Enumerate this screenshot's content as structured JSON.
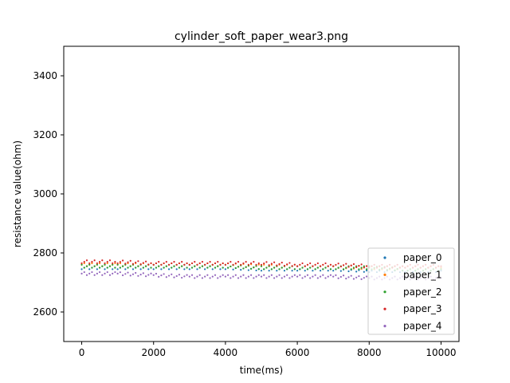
{
  "chart_data": {
    "type": "scatter",
    "title": "cylinder_soft_paper_wear3.png",
    "xlabel": "time(ms)",
    "ylabel": "resistance value(ohm)",
    "xlim": [
      -500,
      10500
    ],
    "ylim": [
      2500,
      3500
    ],
    "xticks": [
      0,
      2000,
      4000,
      6000,
      8000,
      10000
    ],
    "xtick_labels": [
      "0",
      "2000",
      "4000",
      "6000",
      "8000",
      "10000"
    ],
    "yticks": [
      2600,
      2800,
      3000,
      3200,
      3400
    ],
    "ytick_labels": [
      "2600",
      "2800",
      "3000",
      "3200",
      "3400"
    ],
    "grid": false,
    "legend_position": "bottom-right",
    "series": [
      {
        "name": "paper_0",
        "color": "#1f77b4",
        "x": [
          0,
          1000,
          2000,
          3000,
          4000,
          5000,
          6000,
          7000,
          8000,
          9000,
          10000
        ],
        "y": [
          2750,
          2750,
          2750,
          2750,
          2750,
          2745,
          2745,
          2745,
          2740,
          2740,
          2740
        ]
      },
      {
        "name": "paper_1",
        "color": "#ff7f0e",
        "x": [
          0,
          1000,
          2000,
          3000,
          4000,
          5000,
          6000,
          7000,
          8000,
          9000,
          10000
        ],
        "y": [
          2760,
          2760,
          2760,
          2760,
          2760,
          2755,
          2755,
          2755,
          2750,
          2750,
          2750
        ]
      },
      {
        "name": "paper_2",
        "color": "#2ca02c",
        "x": [
          0,
          1000,
          2000,
          3000,
          4000,
          5000,
          6000,
          7000,
          8000,
          9000,
          10000
        ],
        "y": [
          2755,
          2755,
          2755,
          2755,
          2755,
          2750,
          2750,
          2750,
          2750,
          2745,
          2745
        ]
      },
      {
        "name": "paper_3",
        "color": "#d62728",
        "x": [
          0,
          1000,
          2000,
          3000,
          4000,
          5000,
          6000,
          7000,
          8000,
          9000,
          10000
        ],
        "y": [
          2770,
          2770,
          2765,
          2765,
          2765,
          2765,
          2760,
          2760,
          2755,
          2755,
          2755
        ]
      },
      {
        "name": "paper_4",
        "color": "#9467bd",
        "x": [
          0,
          1000,
          2000,
          3000,
          4000,
          5000,
          6000,
          7000,
          8000,
          9000,
          10000
        ],
        "y": [
          2730,
          2730,
          2725,
          2720,
          2720,
          2720,
          2720,
          2720,
          2715,
          2715,
          2715
        ]
      }
    ]
  }
}
